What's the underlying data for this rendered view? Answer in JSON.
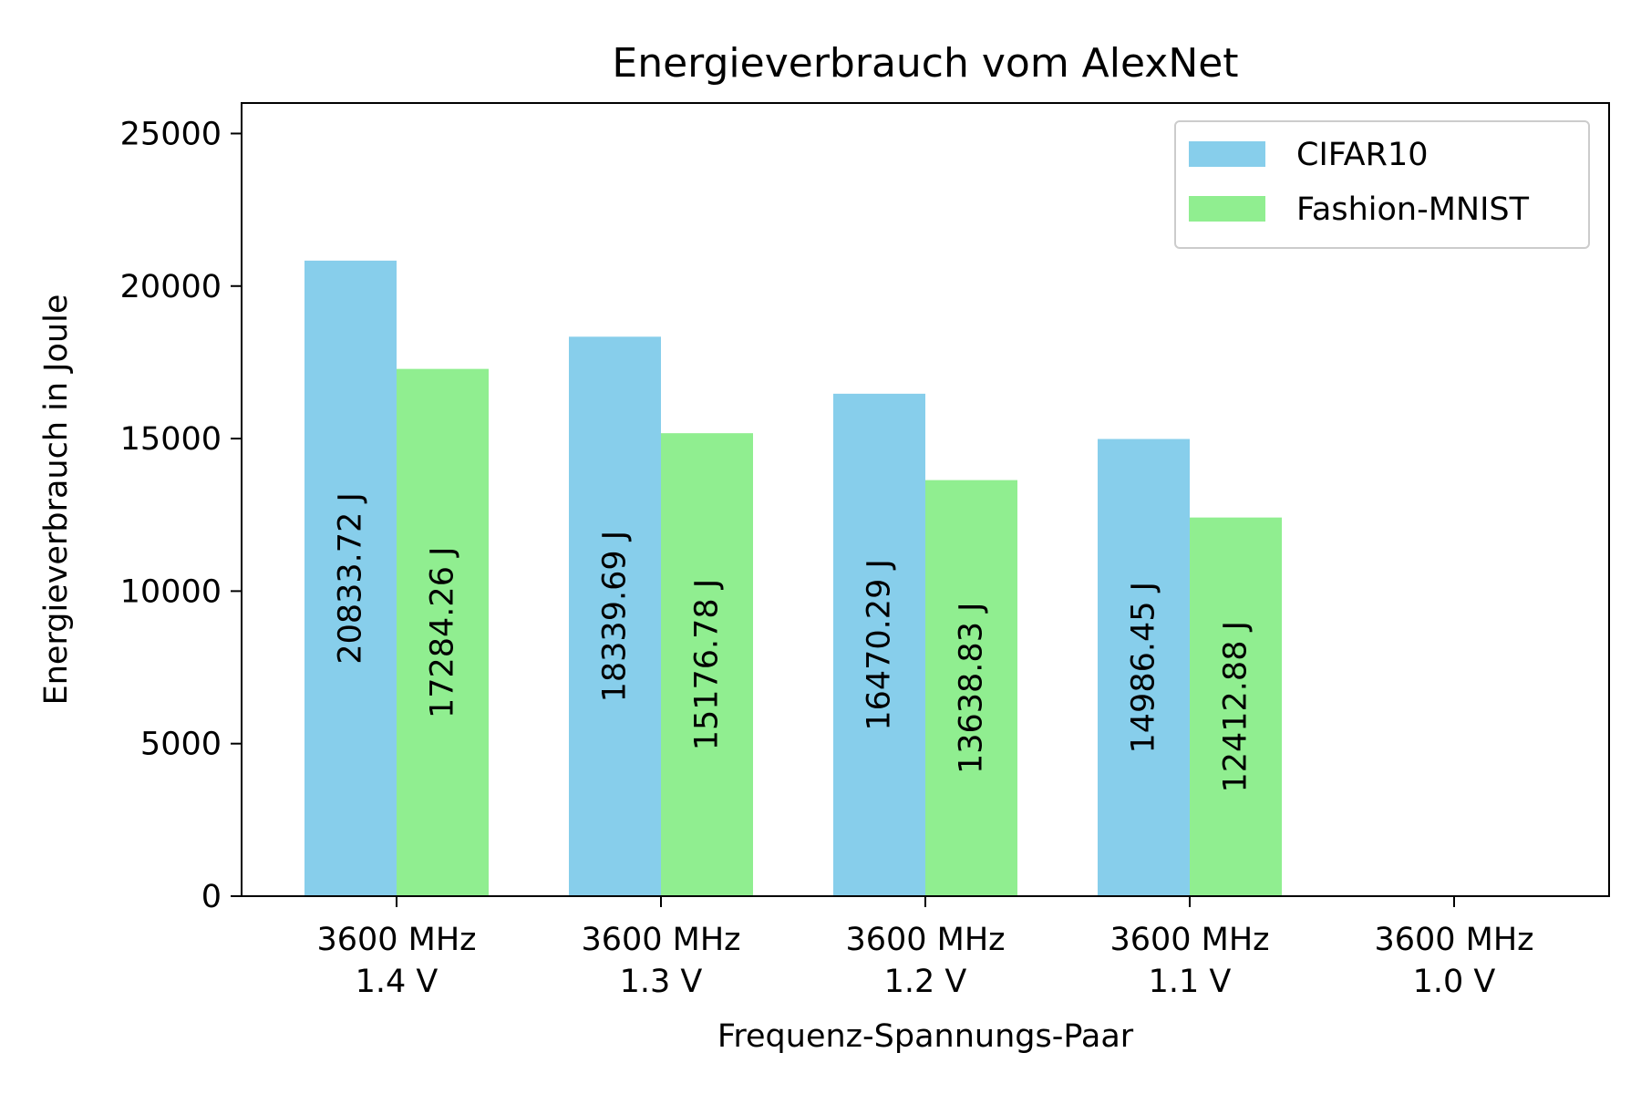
{
  "chart_data": {
    "type": "bar",
    "title": "Energieverbrauch vom AlexNet",
    "xlabel": "Frequenz-Spannungs-Paar",
    "ylabel": "Energieverbrauch in Joule",
    "ylim": [
      0,
      26000
    ],
    "yticks": [
      0,
      5000,
      10000,
      15000,
      20000,
      25000
    ],
    "categories": [
      [
        "3600 MHz",
        "1.4 V"
      ],
      [
        "3600 MHz",
        "1.3 V"
      ],
      [
        "3600 MHz",
        "1.2 V"
      ],
      [
        "3600 MHz",
        "1.1 V"
      ],
      [
        "3600 MHz",
        "1.0 V"
      ]
    ],
    "series": [
      {
        "name": "CIFAR10",
        "color": "#87CEEB",
        "values": [
          20833.72,
          18339.69,
          16470.29,
          14986.45,
          null
        ],
        "labels": [
          "20833.72 J",
          "18339.69 J",
          "16470.29 J",
          "14986.45 J",
          ""
        ]
      },
      {
        "name": "Fashion-MNIST",
        "color": "#90EE90",
        "values": [
          17284.26,
          15176.78,
          13638.83,
          12412.88,
          null
        ],
        "labels": [
          "17284.26 J",
          "15176.78 J",
          "13638.83 J",
          "12412.88 J",
          ""
        ]
      }
    ],
    "legend": "top-right",
    "grid": false
  }
}
